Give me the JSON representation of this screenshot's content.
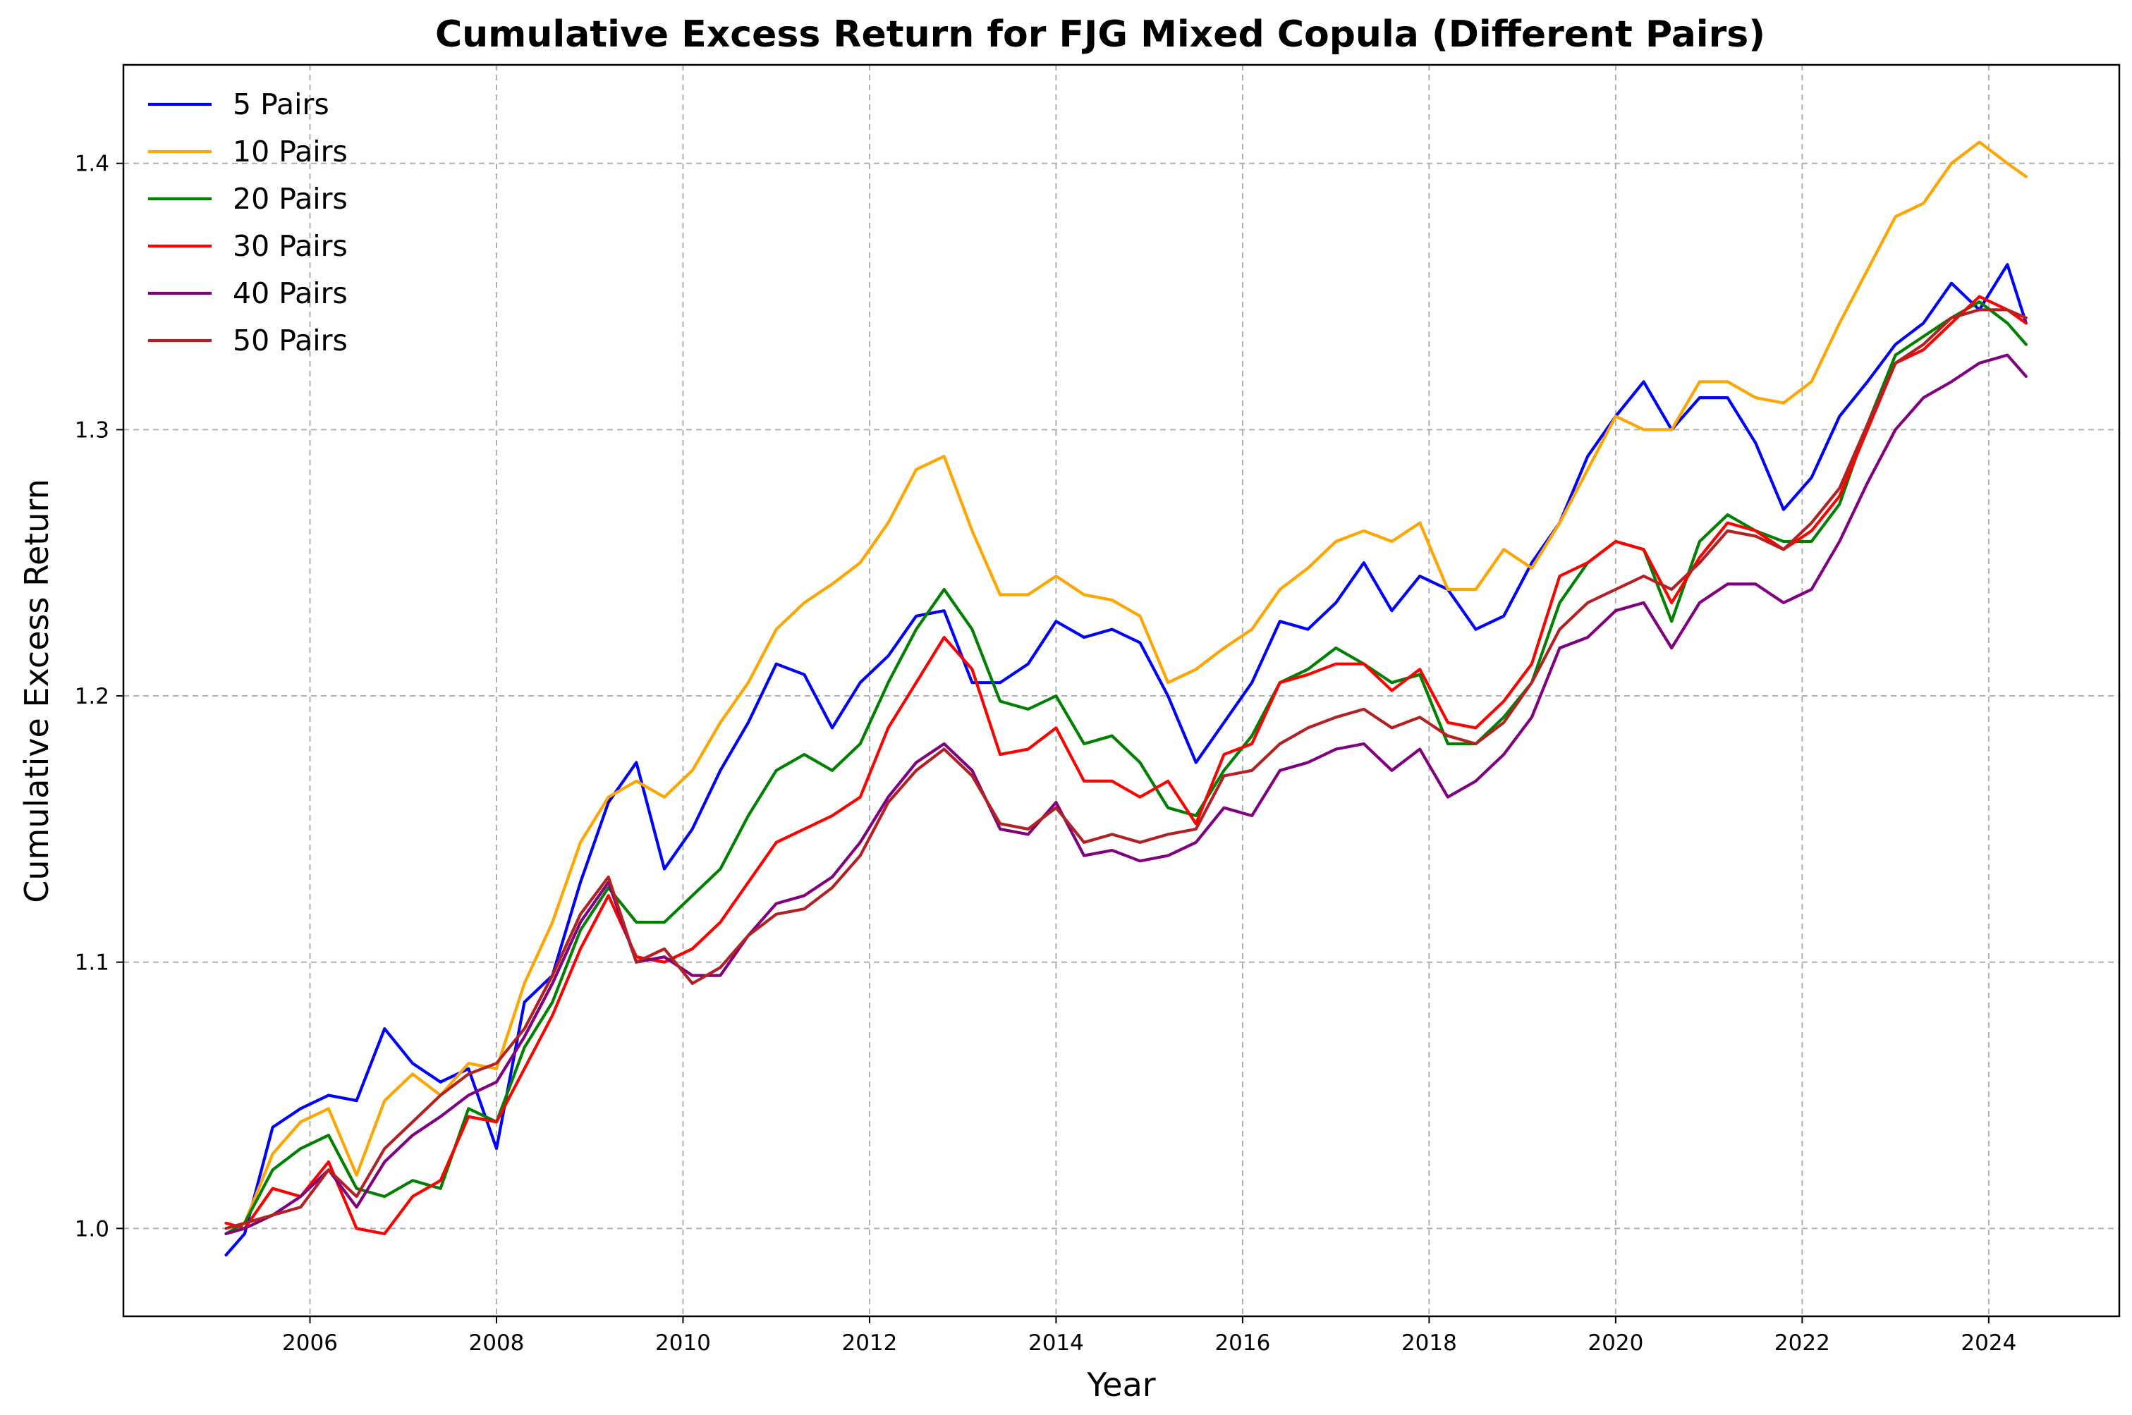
{
  "chart_data": {
    "type": "line",
    "title": "Cumulative Excess Return for FJG Mixed Copula (Different Pairs)",
    "xlabel": "Year",
    "ylabel": "Cumulative Excess Return",
    "xlim": [
      2004.0,
      2025.4
    ],
    "ylim": [
      0.967,
      1.437
    ],
    "x_ticks": [
      2006,
      2008,
      2010,
      2012,
      2014,
      2016,
      2018,
      2020,
      2022,
      2024
    ],
    "y_ticks": [
      1.0,
      1.1,
      1.2,
      1.3,
      1.4
    ],
    "grid": true,
    "legend_position": "upper-left",
    "x": [
      2005.1,
      2005.3,
      2005.6,
      2005.9,
      2006.2,
      2006.5,
      2006.8,
      2007.1,
      2007.4,
      2007.7,
      2008.0,
      2008.3,
      2008.6,
      2008.9,
      2009.2,
      2009.5,
      2009.8,
      2010.1,
      2010.4,
      2010.7,
      2011.0,
      2011.3,
      2011.6,
      2011.9,
      2012.2,
      2012.5,
      2012.8,
      2013.1,
      2013.4,
      2013.7,
      2014.0,
      2014.3,
      2014.6,
      2014.9,
      2015.2,
      2015.5,
      2015.8,
      2016.1,
      2016.4,
      2016.7,
      2017.0,
      2017.3,
      2017.6,
      2017.9,
      2018.2,
      2018.5,
      2018.8,
      2019.1,
      2019.4,
      2019.7,
      2020.0,
      2020.3,
      2020.6,
      2020.9,
      2021.2,
      2021.5,
      2021.8,
      2022.1,
      2022.4,
      2022.7,
      2023.0,
      2023.3,
      2023.6,
      2023.9,
      2024.2,
      2024.4
    ],
    "series": [
      {
        "name": "5 Pairs",
        "color": "#0000ff",
        "values": [
          0.99,
          0.998,
          1.038,
          1.045,
          1.05,
          1.048,
          1.075,
          1.062,
          1.055,
          1.06,
          1.03,
          1.085,
          1.095,
          1.13,
          1.16,
          1.175,
          1.135,
          1.15,
          1.172,
          1.19,
          1.212,
          1.208,
          1.188,
          1.205,
          1.215,
          1.23,
          1.232,
          1.205,
          1.205,
          1.212,
          1.228,
          1.222,
          1.225,
          1.22,
          1.2,
          1.175,
          1.19,
          1.205,
          1.228,
          1.225,
          1.235,
          1.25,
          1.232,
          1.245,
          1.24,
          1.225,
          1.23,
          1.25,
          1.265,
          1.29,
          1.305,
          1.318,
          1.3,
          1.312,
          1.312,
          1.295,
          1.27,
          1.282,
          1.305,
          1.318,
          1.332,
          1.34,
          1.355,
          1.345,
          1.362,
          1.34
        ]
      },
      {
        "name": "10 Pairs",
        "color": "#ffa500",
        "values": [
          0.998,
          1.002,
          1.028,
          1.04,
          1.045,
          1.02,
          1.048,
          1.058,
          1.05,
          1.062,
          1.06,
          1.092,
          1.115,
          1.145,
          1.162,
          1.168,
          1.162,
          1.172,
          1.19,
          1.205,
          1.225,
          1.235,
          1.242,
          1.25,
          1.265,
          1.285,
          1.29,
          1.262,
          1.238,
          1.238,
          1.245,
          1.238,
          1.236,
          1.23,
          1.205,
          1.21,
          1.218,
          1.225,
          1.24,
          1.248,
          1.258,
          1.262,
          1.258,
          1.265,
          1.24,
          1.24,
          1.255,
          1.248,
          1.265,
          1.285,
          1.305,
          1.3,
          1.3,
          1.318,
          1.318,
          1.312,
          1.31,
          1.318,
          1.34,
          1.36,
          1.38,
          1.385,
          1.4,
          1.408,
          1.4,
          1.395
        ]
      },
      {
        "name": "20 Pairs",
        "color": "#008000",
        "values": [
          0.998,
          1.002,
          1.022,
          1.03,
          1.035,
          1.015,
          1.012,
          1.018,
          1.015,
          1.045,
          1.04,
          1.068,
          1.085,
          1.112,
          1.128,
          1.115,
          1.115,
          1.125,
          1.135,
          1.155,
          1.172,
          1.178,
          1.172,
          1.182,
          1.205,
          1.225,
          1.24,
          1.225,
          1.198,
          1.195,
          1.2,
          1.182,
          1.185,
          1.175,
          1.158,
          1.155,
          1.172,
          1.185,
          1.205,
          1.21,
          1.218,
          1.212,
          1.205,
          1.208,
          1.182,
          1.182,
          1.192,
          1.205,
          1.235,
          1.25,
          1.258,
          1.255,
          1.228,
          1.258,
          1.268,
          1.262,
          1.258,
          1.258,
          1.272,
          1.302,
          1.328,
          1.335,
          1.342,
          1.348,
          1.34,
          1.332
        ]
      },
      {
        "name": "30 Pairs",
        "color": "#ff0000",
        "values": [
          1.002,
          1.0,
          1.015,
          1.012,
          1.025,
          1.0,
          0.998,
          1.012,
          1.018,
          1.042,
          1.04,
          1.06,
          1.08,
          1.105,
          1.125,
          1.102,
          1.1,
          1.105,
          1.115,
          1.13,
          1.145,
          1.15,
          1.155,
          1.162,
          1.188,
          1.205,
          1.222,
          1.21,
          1.178,
          1.18,
          1.188,
          1.168,
          1.168,
          1.162,
          1.168,
          1.152,
          1.178,
          1.182,
          1.205,
          1.208,
          1.212,
          1.212,
          1.202,
          1.21,
          1.19,
          1.188,
          1.198,
          1.212,
          1.245,
          1.25,
          1.258,
          1.255,
          1.235,
          1.252,
          1.265,
          1.262,
          1.255,
          1.262,
          1.275,
          1.3,
          1.325,
          1.33,
          1.34,
          1.35,
          1.345,
          1.34
        ]
      },
      {
        "name": "40 Pairs",
        "color": "#800080",
        "values": [
          0.998,
          1.0,
          1.005,
          1.012,
          1.022,
          1.008,
          1.025,
          1.035,
          1.042,
          1.05,
          1.055,
          1.072,
          1.092,
          1.115,
          1.13,
          1.1,
          1.102,
          1.095,
          1.095,
          1.11,
          1.122,
          1.125,
          1.132,
          1.145,
          1.162,
          1.175,
          1.182,
          1.172,
          1.15,
          1.148,
          1.16,
          1.14,
          1.142,
          1.138,
          1.14,
          1.145,
          1.158,
          1.155,
          1.172,
          1.175,
          1.18,
          1.182,
          1.172,
          1.18,
          1.162,
          1.168,
          1.178,
          1.192,
          1.218,
          1.222,
          1.232,
          1.235,
          1.218,
          1.235,
          1.242,
          1.242,
          1.235,
          1.24,
          1.258,
          1.28,
          1.3,
          1.312,
          1.318,
          1.325,
          1.328,
          1.32
        ]
      },
      {
        "name": "50 Pairs",
        "color": "#b22222",
        "values": [
          1.0,
          1.002,
          1.005,
          1.008,
          1.022,
          1.012,
          1.03,
          1.04,
          1.05,
          1.058,
          1.062,
          1.075,
          1.095,
          1.118,
          1.132,
          1.1,
          1.105,
          1.092,
          1.098,
          1.11,
          1.118,
          1.12,
          1.128,
          1.14,
          1.16,
          1.172,
          1.18,
          1.17,
          1.152,
          1.15,
          1.158,
          1.145,
          1.148,
          1.145,
          1.148,
          1.15,
          1.17,
          1.172,
          1.182,
          1.188,
          1.192,
          1.195,
          1.188,
          1.192,
          1.185,
          1.182,
          1.19,
          1.205,
          1.225,
          1.235,
          1.24,
          1.245,
          1.24,
          1.25,
          1.262,
          1.26,
          1.255,
          1.265,
          1.278,
          1.302,
          1.325,
          1.332,
          1.342,
          1.345,
          1.345,
          1.342
        ]
      }
    ]
  }
}
